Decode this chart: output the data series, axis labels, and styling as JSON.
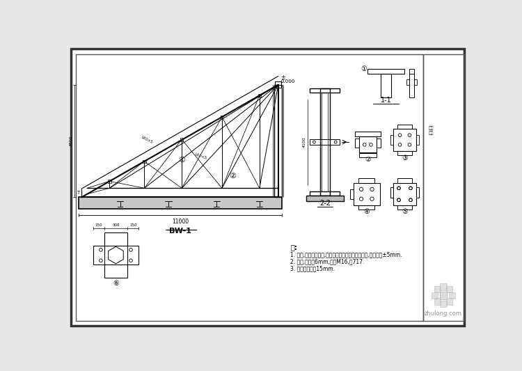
{
  "bg_color": "#e8e8e8",
  "paper_color": "#ffffff",
  "line_color": "#000000",
  "border_color": "#333333",
  "title_label": "BW-1",
  "notes_title": "注:",
  "notes": [
    "1. 钢材,螺栓连接构件,允许偏差应遵照现行规范执行,允许偏差µ5mm.",
    "2. 连接,加劲板6mm,螺栓M16,共ୱ7.",
    "3. 钢结构防锈漆15mm."
  ],
  "watermark": "zhulong.com",
  "section_label_1": "1-1",
  "section_label_2": "2-2"
}
